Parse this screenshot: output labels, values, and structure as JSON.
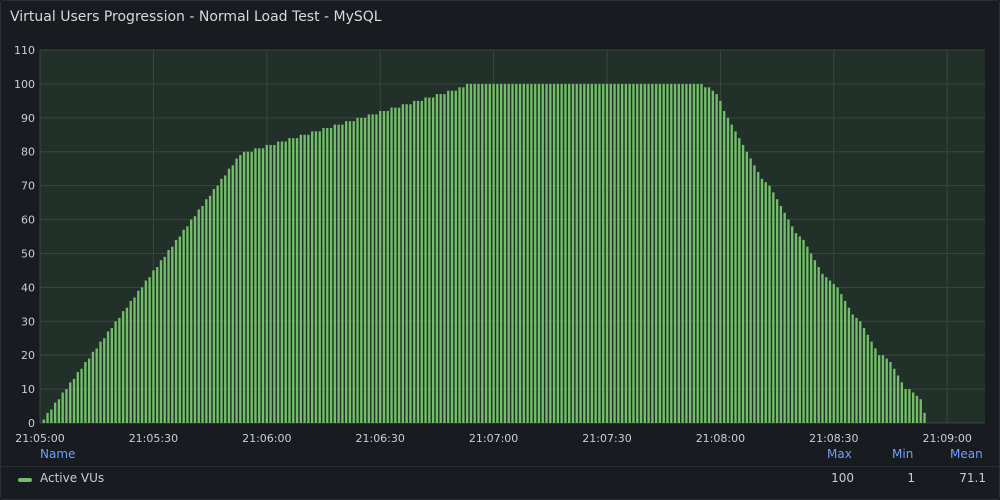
{
  "panel": {
    "title": "Virtual Users Progression - Normal Load Test - MySQL"
  },
  "legend": {
    "headers": {
      "name": "Name",
      "max": "Max",
      "min": "Min",
      "mean": "Mean"
    },
    "rows": [
      {
        "name": "Active VUs",
        "max": "100",
        "min": "1",
        "mean": "71.1",
        "color": "#73bf69"
      }
    ]
  },
  "chart_data": {
    "type": "bar",
    "title": "Virtual Users Progression - Normal Load Test - MySQL",
    "xlabel": "",
    "ylabel": "",
    "ylim": [
      0,
      110
    ],
    "xlim": [
      "21:05:00",
      "21:09:10"
    ],
    "y_ticks": [
      "0",
      "10",
      "20",
      "30",
      "40",
      "50",
      "60",
      "70",
      "80",
      "90",
      "100",
      "110"
    ],
    "x_ticks": [
      "21:05:00",
      "21:05:30",
      "21:06:00",
      "21:06:30",
      "21:07:00",
      "21:07:30",
      "21:08:00",
      "21:08:30",
      "21:09:00"
    ],
    "grid": true,
    "color": "#73bf69",
    "series": [
      {
        "name": "Active VUs",
        "sample_interval_s": 1,
        "start": "21:05:01",
        "values": [
          1,
          3,
          4,
          6,
          7,
          9,
          10,
          12,
          13,
          15,
          16,
          18,
          19,
          21,
          22,
          24,
          25,
          27,
          28,
          30,
          31,
          33,
          34,
          36,
          37,
          39,
          40,
          42,
          43,
          45,
          46,
          48,
          49,
          51,
          52,
          54,
          55,
          57,
          58,
          60,
          61,
          63,
          64,
          66,
          67,
          69,
          70,
          72,
          73,
          75,
          76,
          78,
          79,
          80,
          80,
          80,
          81,
          81,
          81,
          82,
          82,
          82,
          83,
          83,
          83,
          84,
          84,
          84,
          85,
          85,
          85,
          86,
          86,
          86,
          87,
          87,
          87,
          88,
          88,
          88,
          89,
          89,
          89,
          90,
          90,
          90,
          91,
          91,
          91,
          92,
          92,
          92,
          93,
          93,
          93,
          94,
          94,
          94,
          95,
          95,
          95,
          96,
          96,
          96,
          97,
          97,
          97,
          98,
          98,
          98,
          99,
          99,
          100,
          100,
          100,
          100,
          100,
          100,
          100,
          100,
          100,
          100,
          100,
          100,
          100,
          100,
          100,
          100,
          100,
          100,
          100,
          100,
          100,
          100,
          100,
          100,
          100,
          100,
          100,
          100,
          100,
          100,
          100,
          100,
          100,
          100,
          100,
          100,
          100,
          100,
          100,
          100,
          100,
          100,
          100,
          100,
          100,
          100,
          100,
          100,
          100,
          100,
          100,
          100,
          100,
          100,
          100,
          100,
          100,
          100,
          100,
          100,
          100,
          100,
          100,
          99,
          99,
          98,
          97,
          95,
          92,
          90,
          88,
          86,
          84,
          82,
          80,
          78,
          76,
          74,
          72,
          71,
          70,
          68,
          66,
          64,
          62,
          60,
          58,
          56,
          55,
          54,
          52,
          50,
          48,
          46,
          44,
          43,
          42,
          41,
          40,
          38,
          36,
          34,
          32,
          31,
          30,
          28,
          26,
          24,
          22,
          20,
          20,
          19,
          18,
          16,
          14,
          12,
          10,
          10,
          9,
          8,
          7,
          3
        ]
      }
    ]
  }
}
